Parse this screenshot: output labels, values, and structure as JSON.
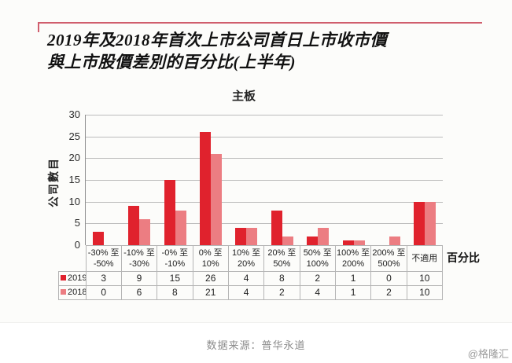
{
  "title": {
    "line1": "2019年及2018年首次上市公司首日上市收市價",
    "line2": "與上市股價差別的百分比(上半年)"
  },
  "chart_data": {
    "type": "bar",
    "title": "主板",
    "ylabel": "公司數目",
    "xlabel": "百分比",
    "categories": [
      "-30% 至\n-50%",
      "-10% 至\n-30%",
      "-0% 至\n-10%",
      "0% 至\n10%",
      "10% 至\n20%",
      "20% 至\n50%",
      "50% 至\n100%",
      "100% 至\n200%",
      "200% 至\n500%",
      "不適用"
    ],
    "series": [
      {
        "name": "2019",
        "color": "#e0222d",
        "values": [
          3,
          9,
          15,
          26,
          4,
          8,
          2,
          1,
          0,
          10
        ]
      },
      {
        "name": "2018",
        "color": "#ec7d82",
        "values": [
          0,
          6,
          8,
          21,
          4,
          2,
          4,
          1,
          2,
          10
        ]
      }
    ],
    "ylim": [
      0,
      30
    ],
    "yticks": [
      0,
      5,
      10,
      15,
      20,
      25,
      30
    ],
    "grid": true,
    "legend_position": "table-left"
  },
  "footer": {
    "source": "数据来源：普华永道",
    "watermark": "@格隆汇"
  },
  "colors": {
    "title_rule": "#d05e6d",
    "accent_red": "#e0222d",
    "accent_pink": "#ec7d82",
    "gridline": "#bcbcbc"
  }
}
